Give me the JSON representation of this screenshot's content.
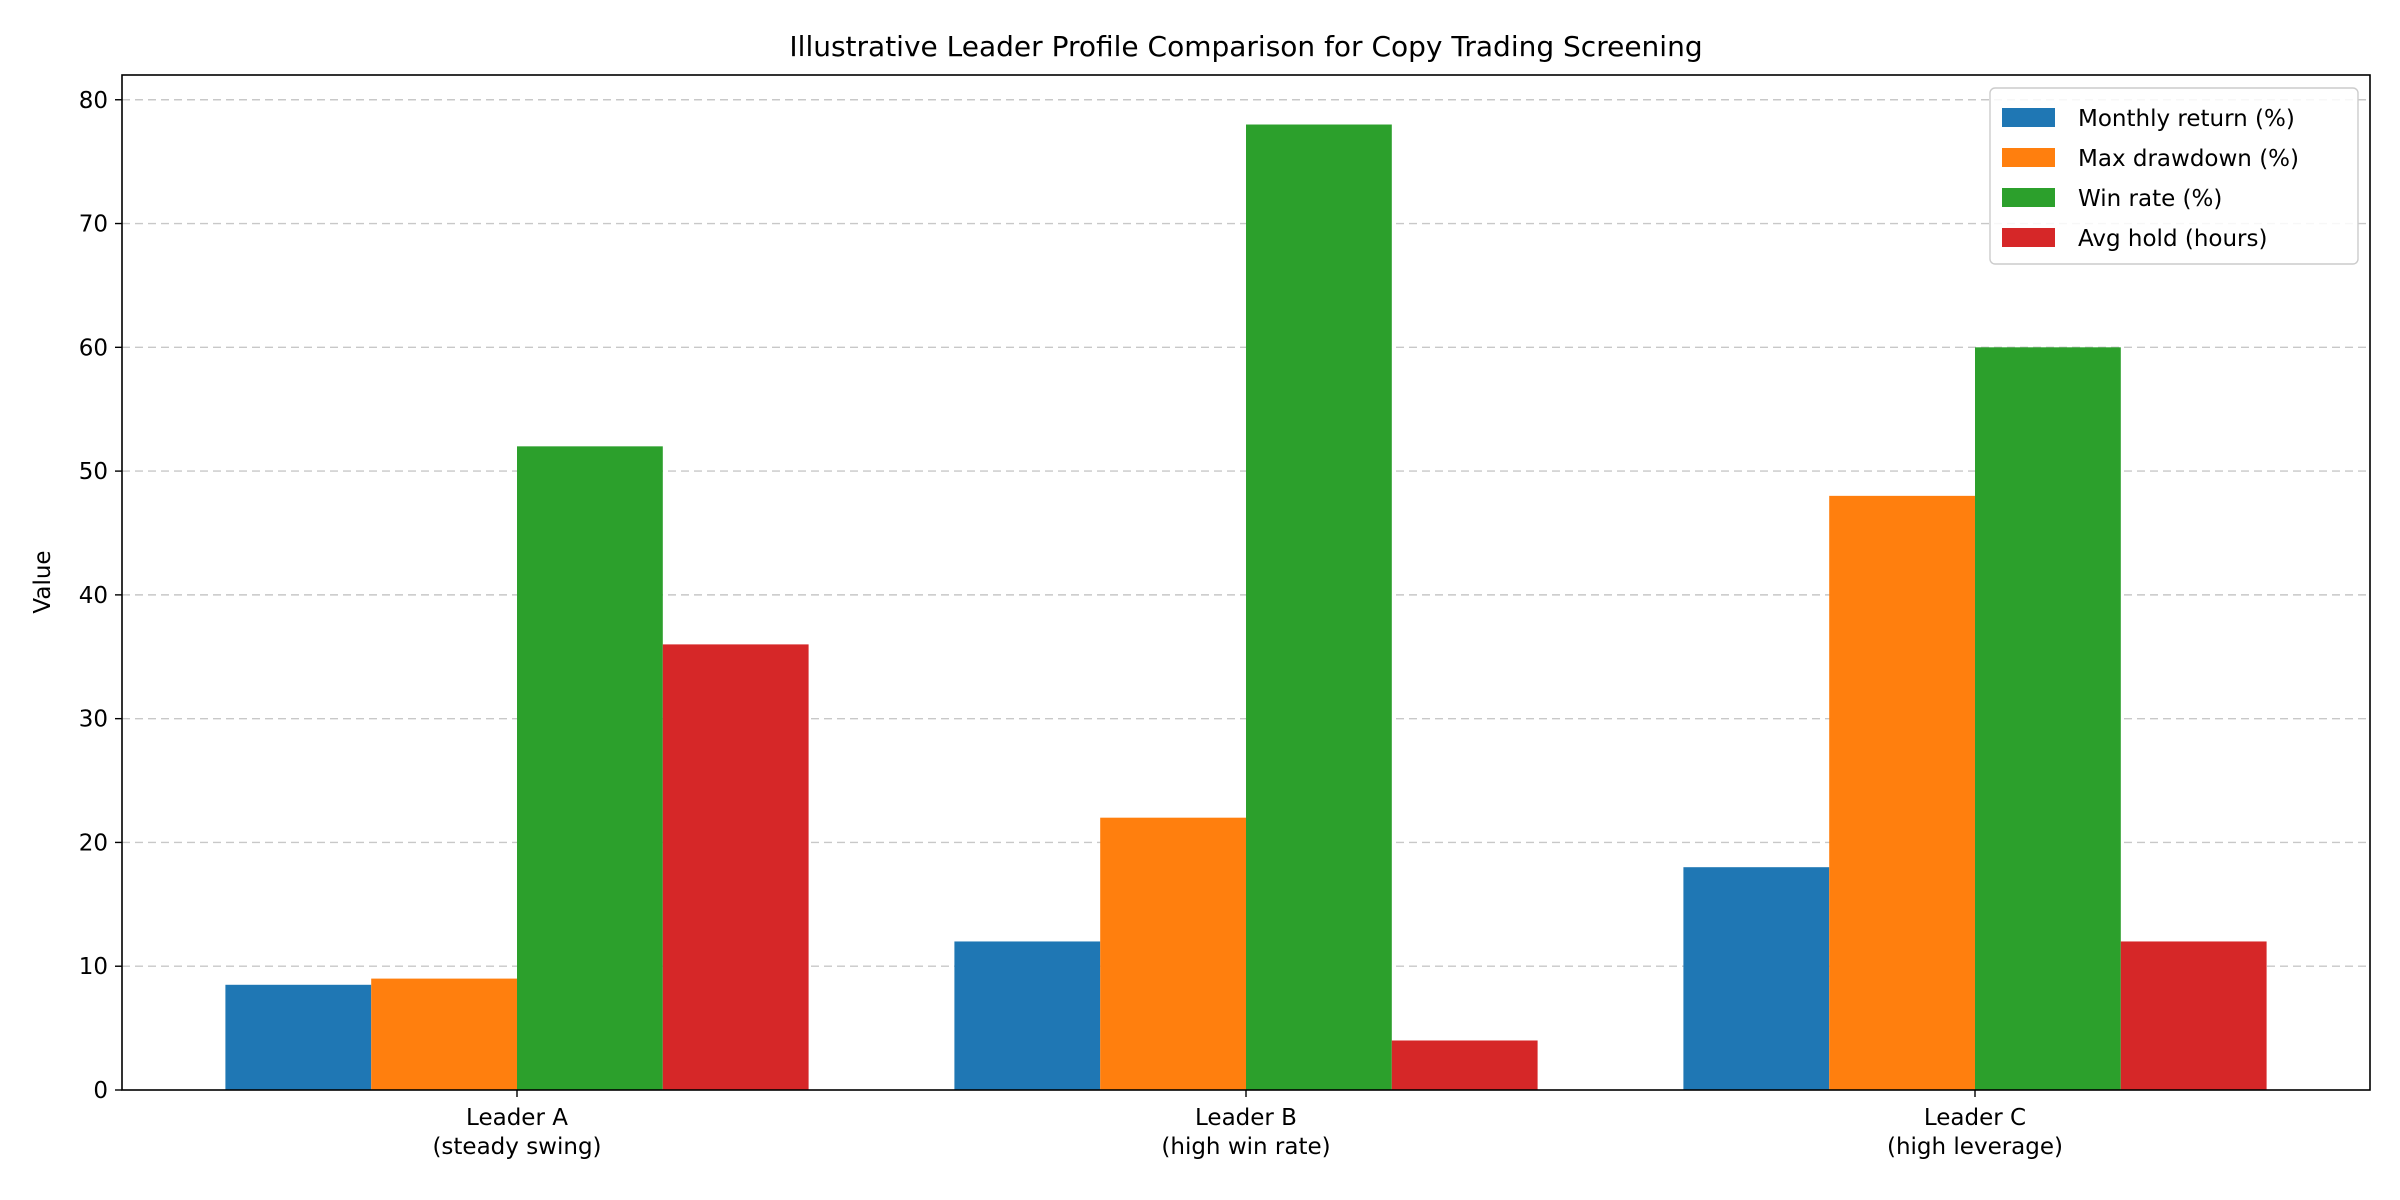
{
  "chart_data": {
    "type": "bar",
    "title": "Illustrative Leader Profile Comparison for Copy Trading Screening",
    "xlabel": "",
    "ylabel": "Value",
    "ylim": [
      0,
      82
    ],
    "yticks": [
      0,
      10,
      20,
      30,
      40,
      50,
      60,
      70,
      80
    ],
    "grid": "y, dashed",
    "legend_position": "top-right",
    "categories": [
      [
        "Leader A",
        "(steady swing)"
      ],
      [
        "Leader B",
        "(high win rate)"
      ],
      [
        "Leader C",
        "(high leverage)"
      ]
    ],
    "series": [
      {
        "name": "Monthly return (%)",
        "color": "#1f77b4",
        "values": [
          8.5,
          12,
          18
        ]
      },
      {
        "name": "Max drawdown (%)",
        "color": "#ff7f0e",
        "values": [
          9,
          22,
          48
        ]
      },
      {
        "name": "Win rate (%)",
        "color": "#2ca02c",
        "values": [
          52,
          78,
          60
        ]
      },
      {
        "name": "Avg hold (hours)",
        "color": "#d62728",
        "values": [
          36,
          4,
          12
        ]
      }
    ]
  }
}
